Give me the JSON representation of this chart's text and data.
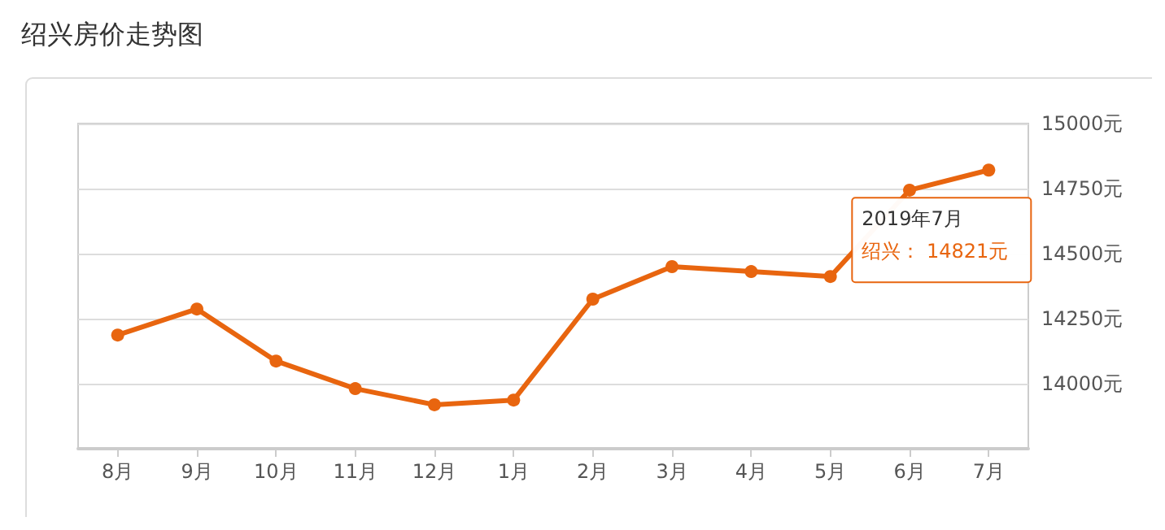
{
  "chart_data": {
    "type": "line",
    "title": "绍兴房价走势图",
    "categories": [
      "8月",
      "9月",
      "10月",
      "11月",
      "12月",
      "1月",
      "2月",
      "3月",
      "4月",
      "5月",
      "6月",
      "7月"
    ],
    "series": [
      {
        "color": "#e8650f",
        "values": [
          14187,
          14287,
          14087,
          13981,
          13919,
          13937,
          14325,
          14450,
          14431,
          14412,
          14744,
          14821
        ]
      }
    ],
    "ylim": [
      13750,
      15000
    ],
    "yticks": [
      {
        "value": 13750,
        "label": null
      },
      {
        "value": 14000,
        "label": "14000元"
      },
      {
        "value": 14250,
        "label": "14250元"
      },
      {
        "value": 14500,
        "label": "14500元"
      },
      {
        "value": 14750,
        "label": "14750元"
      },
      {
        "value": 15000,
        "label": "15000元"
      }
    ],
    "grid": "y",
    "marker": "circle",
    "line_style": "solid",
    "annotations": [
      "2019年7月",
      "绍兴： 14821元"
    ]
  }
}
